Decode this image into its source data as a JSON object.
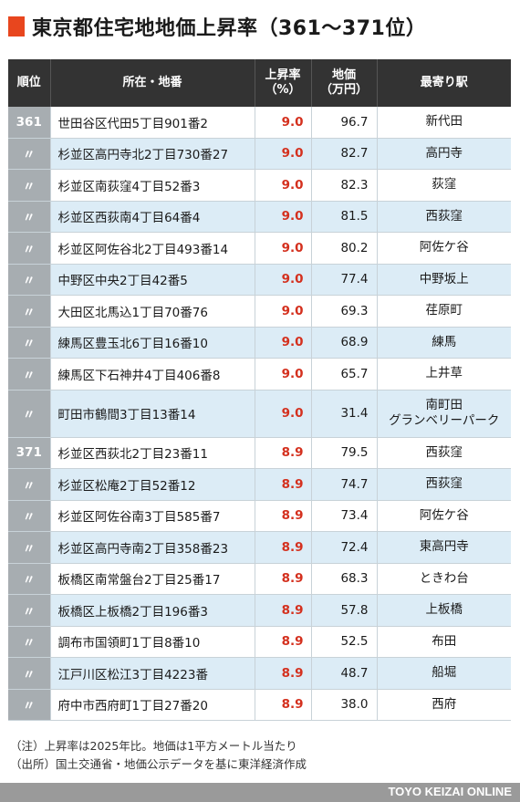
{
  "title": "東京都住宅地地価上昇率（361〜371位）",
  "headers": {
    "rank": "順位",
    "location": "所在・地番",
    "rate": [
      "上昇率",
      "（%）"
    ],
    "price": [
      "地価",
      "（万円）"
    ],
    "station": "最寄り駅"
  },
  "rows": [
    {
      "rank": "361",
      "location": "世田谷区代田5丁目901番2",
      "rate": "9.0",
      "price": "96.7",
      "station": [
        "新代田"
      ]
    },
    {
      "rank": "〃",
      "location": "杉並区高円寺北2丁目730番27",
      "rate": "9.0",
      "price": "82.7",
      "station": [
        "高円寺"
      ]
    },
    {
      "rank": "〃",
      "location": "杉並区南荻窪4丁目52番3",
      "rate": "9.0",
      "price": "82.3",
      "station": [
        "荻窪"
      ]
    },
    {
      "rank": "〃",
      "location": "杉並区西荻南4丁目64番4",
      "rate": "9.0",
      "price": "81.5",
      "station": [
        "西荻窪"
      ]
    },
    {
      "rank": "〃",
      "location": "杉並区阿佐谷北2丁目493番14",
      "rate": "9.0",
      "price": "80.2",
      "station": [
        "阿佐ケ谷"
      ]
    },
    {
      "rank": "〃",
      "location": "中野区中央2丁目42番5",
      "rate": "9.0",
      "price": "77.4",
      "station": [
        "中野坂上"
      ]
    },
    {
      "rank": "〃",
      "location": "大田区北馬込1丁目70番76",
      "rate": "9.0",
      "price": "69.3",
      "station": [
        "荏原町"
      ]
    },
    {
      "rank": "〃",
      "location": "練馬区豊玉北6丁目16番10",
      "rate": "9.0",
      "price": "68.9",
      "station": [
        "練馬"
      ]
    },
    {
      "rank": "〃",
      "location": "練馬区下石神井4丁目406番8",
      "rate": "9.0",
      "price": "65.7",
      "station": [
        "上井草"
      ]
    },
    {
      "rank": "〃",
      "location": "町田市鶴間3丁目13番14",
      "rate": "9.0",
      "price": "31.4",
      "station": [
        "南町田",
        "グランベリーパーク"
      ]
    },
    {
      "rank": "371",
      "location": "杉並区西荻北2丁目23番11",
      "rate": "8.9",
      "price": "79.5",
      "station": [
        "西荻窪"
      ]
    },
    {
      "rank": "〃",
      "location": "杉並区松庵2丁目52番12",
      "rate": "8.9",
      "price": "74.7",
      "station": [
        "西荻窪"
      ]
    },
    {
      "rank": "〃",
      "location": "杉並区阿佐谷南3丁目585番7",
      "rate": "8.9",
      "price": "73.4",
      "station": [
        "阿佐ケ谷"
      ]
    },
    {
      "rank": "〃",
      "location": "杉並区高円寺南2丁目358番23",
      "rate": "8.9",
      "price": "72.4",
      "station": [
        "東高円寺"
      ]
    },
    {
      "rank": "〃",
      "location": "板橋区南常盤台2丁目25番17",
      "rate": "8.9",
      "price": "68.3",
      "station": [
        "ときわ台"
      ]
    },
    {
      "rank": "〃",
      "location": "板橋区上板橋2丁目196番3",
      "rate": "8.9",
      "price": "57.8",
      "station": [
        "上板橋"
      ]
    },
    {
      "rank": "〃",
      "location": "調布市国領町1丁目8番10",
      "rate": "8.9",
      "price": "52.5",
      "station": [
        "布田"
      ]
    },
    {
      "rank": "〃",
      "location": "江戸川区松江3丁目4223番",
      "rate": "8.9",
      "price": "48.7",
      "station": [
        "船堀"
      ]
    },
    {
      "rank": "〃",
      "location": "府中市西府町1丁目27番20",
      "rate": "8.9",
      "price": "38.0",
      "station": [
        "西府"
      ]
    }
  ],
  "notes": [
    "（注）上昇率は2025年比。地価は1平方メートル当たり",
    "（出所）国土交通省・地価公示データを基に東洋経済作成"
  ],
  "footer": "TOYO KEIZAI ONLINE",
  "colors": {
    "accent": "#e8461e",
    "header_bg": "#333333",
    "rank_bg": "#a7adb1",
    "row_blue": "#dcecf6",
    "rate_text": "#d4301e",
    "footer_bg": "#9a9a9a"
  }
}
